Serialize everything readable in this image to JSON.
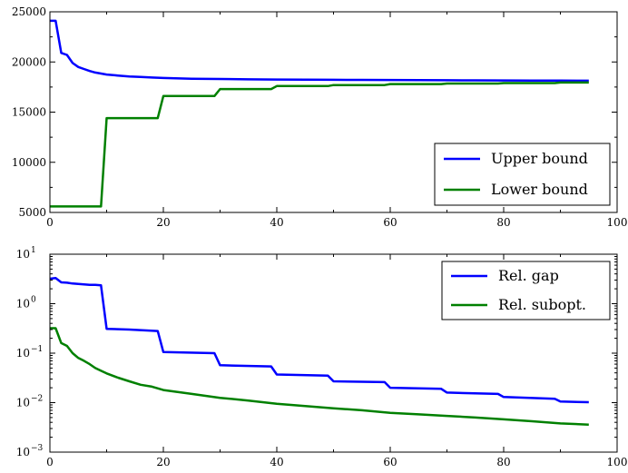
{
  "chart_data": [
    {
      "type": "line",
      "title": "",
      "xlabel": "",
      "ylabel": "",
      "xlim": [
        0,
        100
      ],
      "ylim": [
        5000,
        25000
      ],
      "yscale": "linear",
      "grid": false,
      "legend_position": "bottom-right",
      "xticks": [
        "0",
        "20",
        "40",
        "60",
        "80",
        "100"
      ],
      "yticks": [
        "5000",
        "10000",
        "15000",
        "20000",
        "25000"
      ],
      "series": [
        {
          "name": "Upper bound",
          "color": "#0000ff",
          "x": [
            0,
            1,
            2,
            3,
            4,
            5,
            6,
            7,
            8,
            9,
            10,
            12,
            14,
            16,
            18,
            20,
            25,
            30,
            35,
            40,
            45,
            50,
            55,
            60,
            65,
            70,
            75,
            80,
            85,
            90,
            95
          ],
          "y": [
            24100,
            24100,
            20900,
            20700,
            19900,
            19500,
            19300,
            19100,
            18950,
            18850,
            18750,
            18650,
            18550,
            18500,
            18450,
            18400,
            18330,
            18300,
            18270,
            18250,
            18230,
            18220,
            18210,
            18200,
            18190,
            18180,
            18170,
            18160,
            18150,
            18140,
            18130
          ]
        },
        {
          "name": "Lower bound",
          "color": "#008000",
          "x": [
            0,
            9,
            10,
            19,
            20,
            29,
            30,
            39,
            40,
            49,
            50,
            59,
            60,
            69,
            70,
            79,
            80,
            89,
            90,
            95
          ],
          "y": [
            5600,
            5600,
            14400,
            14400,
            16600,
            16600,
            17300,
            17300,
            17600,
            17600,
            17700,
            17700,
            17800,
            17800,
            17850,
            17850,
            17900,
            17900,
            17950,
            17950
          ]
        }
      ]
    },
    {
      "type": "line",
      "title": "",
      "xlabel": "",
      "ylabel": "",
      "xlim": [
        0,
        100
      ],
      "ylim": [
        0.001,
        10
      ],
      "yscale": "log",
      "grid": false,
      "legend_position": "top-right",
      "xticks": [
        "0",
        "20",
        "40",
        "60",
        "80",
        "100"
      ],
      "yticks": [
        {
          "base": "10",
          "exp": "1"
        },
        {
          "base": "10",
          "exp": "0"
        },
        {
          "base": "10",
          "exp": "−1"
        },
        {
          "base": "10",
          "exp": "−2"
        },
        {
          "base": "10",
          "exp": "−3"
        }
      ],
      "series": [
        {
          "name": "Rel. gap",
          "color": "#0000ff",
          "x": [
            0,
            1,
            2,
            3,
            4,
            5,
            6,
            7,
            8,
            9,
            10,
            14,
            19,
            20,
            29,
            30,
            39,
            40,
            49,
            50,
            59,
            60,
            69,
            70,
            79,
            80,
            89,
            90,
            95
          ],
          "y": [
            3.2,
            3.3,
            2.7,
            2.65,
            2.55,
            2.5,
            2.45,
            2.4,
            2.4,
            2.35,
            0.31,
            0.3,
            0.28,
            0.105,
            0.1,
            0.057,
            0.054,
            0.037,
            0.035,
            0.027,
            0.026,
            0.02,
            0.019,
            0.016,
            0.015,
            0.013,
            0.012,
            0.0105,
            0.0102
          ]
        },
        {
          "name": "Rel. subopt.",
          "color": "#008000",
          "x": [
            0,
            1,
            2,
            3,
            4,
            5,
            6,
            7,
            8,
            9,
            10,
            12,
            14,
            16,
            18,
            20,
            25,
            30,
            35,
            40,
            45,
            50,
            55,
            60,
            65,
            70,
            75,
            80,
            85,
            90,
            95
          ],
          "y": [
            0.32,
            0.32,
            0.16,
            0.14,
            0.1,
            0.08,
            0.07,
            0.06,
            0.05,
            0.044,
            0.039,
            0.032,
            0.027,
            0.023,
            0.021,
            0.018,
            0.015,
            0.0125,
            0.011,
            0.0095,
            0.0085,
            0.0077,
            0.007,
            0.0062,
            0.0058,
            0.0054,
            0.005,
            0.0046,
            0.0042,
            0.0038,
            0.0036
          ]
        }
      ]
    }
  ]
}
